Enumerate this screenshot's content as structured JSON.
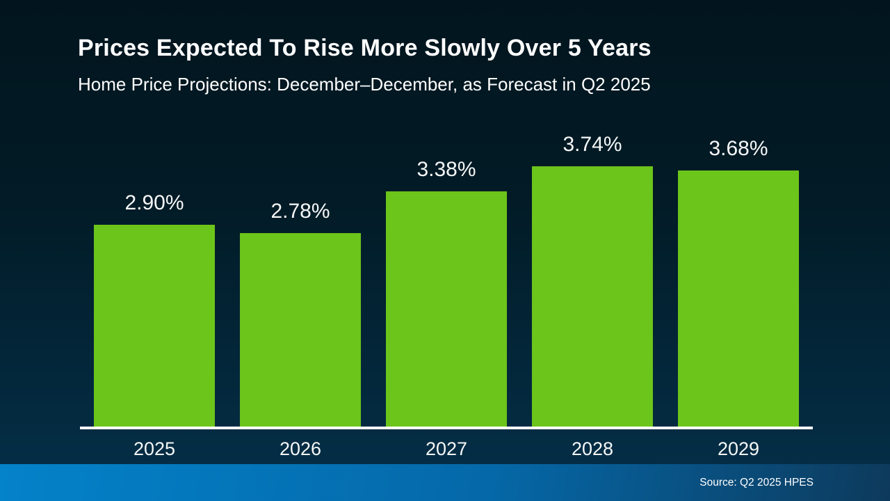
{
  "slide": {
    "title": "Prices Expected To Rise More Slowly Over 5 Years",
    "subtitle": "Home Price Projections: December–December, as Forecast in Q2 2025",
    "source": "Source: Q2 2025 HPES"
  },
  "colors": {
    "background_top": "#02151e",
    "background_mid": "#021b26",
    "background_bottom": "#04304a",
    "bar": "#6cc51a",
    "axis": "#ffffff",
    "text": "#ffffff",
    "footer_left": "#0482ca",
    "footer_mid": "#0568a8",
    "footer_right": "#0d3a5c"
  },
  "chart_data": {
    "type": "bar",
    "title": "Prices Expected To Rise More Slowly Over 5 Years",
    "subtitle": "Home Price Projections: December–December, as Forecast in Q2 2025",
    "categories": [
      "2025",
      "2026",
      "2027",
      "2028",
      "2029"
    ],
    "values": [
      2.9,
      2.78,
      3.38,
      3.74,
      3.68
    ],
    "data_labels": [
      "2.90%",
      "2.78%",
      "3.38%",
      "3.74%",
      "3.68%"
    ],
    "unit": "percent",
    "xlabel": "",
    "ylabel": "",
    "ylim": [
      0,
      4.33
    ],
    "grid": false,
    "legend": false,
    "y_axis_ticks_visible": false,
    "bar_color": "#6cc51a",
    "source": "Source: Q2 2025 HPES"
  }
}
